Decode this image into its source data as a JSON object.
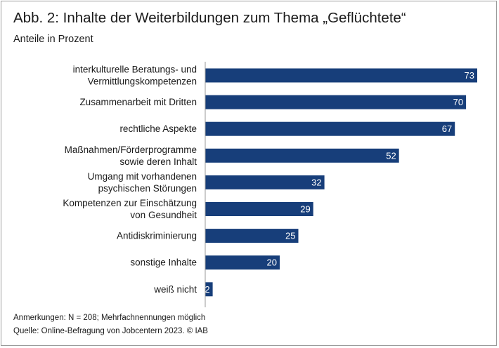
{
  "header": {
    "title": "Abb. 2: Inhalte der Weiterbildungen zum Thema „Geflüchtete“",
    "subtitle": "Anteile in Prozent"
  },
  "footer": {
    "note": "Anmerkungen: N = 208; Mehrfachnennungen möglich",
    "source": "Quelle: Online-Befragung von Jobcentern 2023. © IAB"
  },
  "colors": {
    "bar": "#173e7a",
    "axis": "#9a9a9a",
    "value_label": "#ffffff"
  },
  "chart_data": {
    "type": "bar",
    "orientation": "horizontal",
    "title": "Abb. 2: Inhalte der Weiterbildungen zum Thema „Geflüchtete“",
    "subtitle": "Anteile in Prozent",
    "xlabel": "",
    "ylabel": "",
    "xlim": [
      0,
      73
    ],
    "grid": false,
    "categories": [
      [
        "interkulturelle Beratungs- und",
        "Vermittlungskompetenzen"
      ],
      [
        "Zusammenarbeit mit Dritten"
      ],
      [
        "rechtliche Aspekte"
      ],
      [
        "Maßnahmen/Förderprogramme",
        "sowie deren Inhalt"
      ],
      [
        "Umgang mit vorhandenen",
        "psychischen Störungen"
      ],
      [
        "Kompetenzen zur Einschätzung",
        "von Gesundheit"
      ],
      [
        "Antidiskriminierung"
      ],
      [
        "sonstige Inhalte"
      ],
      [
        "weiß nicht"
      ]
    ],
    "values": [
      73,
      70,
      67,
      52,
      32,
      29,
      25,
      20,
      2
    ]
  }
}
